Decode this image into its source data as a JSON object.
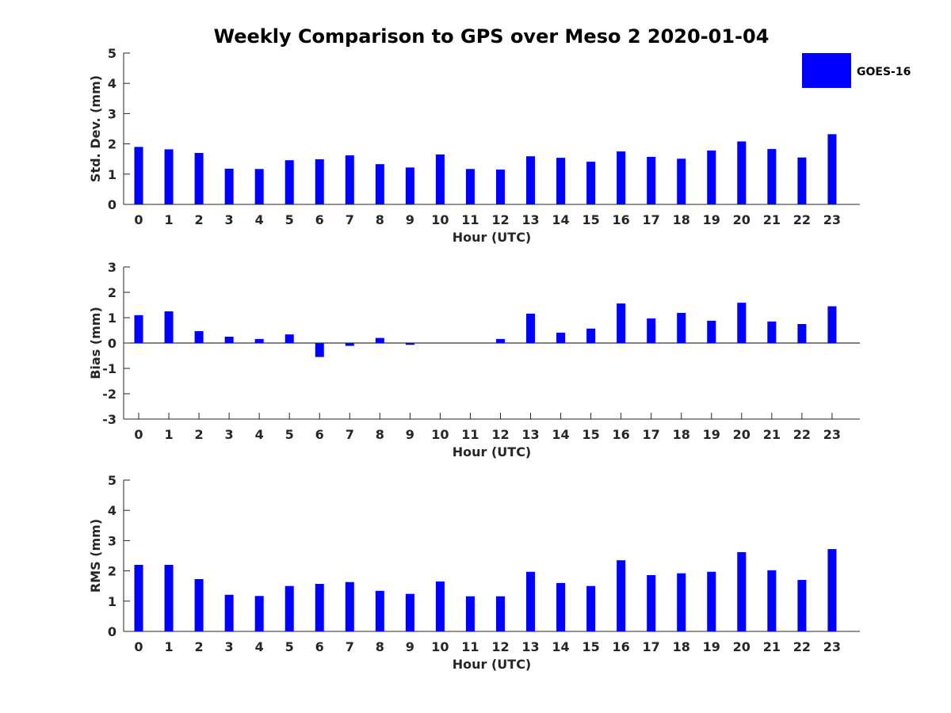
{
  "title": "Weekly Comparison to GPS over Meso 2 2020-01-04",
  "legend": {
    "label": "GOES-16",
    "color": "#0000ff"
  },
  "colors": {
    "bar": "#0000ff",
    "axis": "#262626",
    "zero_line": "#000000"
  },
  "chart_data": [
    {
      "type": "bar",
      "ylabel": "Std. Dev. (mm)",
      "xlabel": "Hour (UTC)",
      "ylim": [
        0,
        5
      ],
      "yticks": [
        0,
        1,
        2,
        3,
        4,
        5
      ],
      "categories": [
        "0",
        "1",
        "2",
        "3",
        "4",
        "5",
        "6",
        "7",
        "8",
        "9",
        "10",
        "11",
        "12",
        "13",
        "14",
        "15",
        "16",
        "17",
        "18",
        "19",
        "20",
        "21",
        "22",
        "23"
      ],
      "series": [
        {
          "name": "GOES-16",
          "values": [
            1.9,
            1.82,
            1.7,
            1.18,
            1.17,
            1.46,
            1.49,
            1.62,
            1.33,
            1.22,
            1.65,
            1.17,
            1.15,
            1.59,
            1.54,
            1.41,
            1.75,
            1.57,
            1.51,
            1.78,
            2.08,
            1.83,
            1.55,
            2.32
          ]
        }
      ]
    },
    {
      "type": "bar",
      "ylabel": "Bias (mm)",
      "xlabel": "Hour (UTC)",
      "ylim": [
        -3,
        3
      ],
      "yticks": [
        -3,
        -2,
        -1,
        0,
        1,
        2,
        3
      ],
      "categories": [
        "0",
        "1",
        "2",
        "3",
        "4",
        "5",
        "6",
        "7",
        "8",
        "9",
        "10",
        "11",
        "12",
        "13",
        "14",
        "15",
        "16",
        "17",
        "18",
        "19",
        "20",
        "21",
        "22",
        "23"
      ],
      "series": [
        {
          "name": "GOES-16",
          "values": [
            1.1,
            1.25,
            0.47,
            0.25,
            0.16,
            0.34,
            -0.55,
            -0.11,
            0.2,
            -0.07,
            0.0,
            0.0,
            0.16,
            1.16,
            0.41,
            0.57,
            1.56,
            0.97,
            1.19,
            0.88,
            1.59,
            0.85,
            0.75,
            1.45
          ]
        }
      ]
    },
    {
      "type": "bar",
      "ylabel": "RMS (mm)",
      "xlabel": "Hour (UTC)",
      "ylim": [
        0,
        5
      ],
      "yticks": [
        0,
        1,
        2,
        3,
        4,
        5
      ],
      "categories": [
        "0",
        "1",
        "2",
        "3",
        "4",
        "5",
        "6",
        "7",
        "8",
        "9",
        "10",
        "11",
        "12",
        "13",
        "14",
        "15",
        "16",
        "17",
        "18",
        "19",
        "20",
        "21",
        "22",
        "23"
      ],
      "series": [
        {
          "name": "GOES-16",
          "values": [
            2.2,
            2.2,
            1.73,
            1.21,
            1.17,
            1.5,
            1.57,
            1.63,
            1.34,
            1.24,
            1.65,
            1.16,
            1.16,
            1.97,
            1.6,
            1.5,
            2.35,
            1.86,
            1.92,
            1.97,
            2.62,
            2.02,
            1.7,
            2.72
          ]
        }
      ]
    }
  ]
}
